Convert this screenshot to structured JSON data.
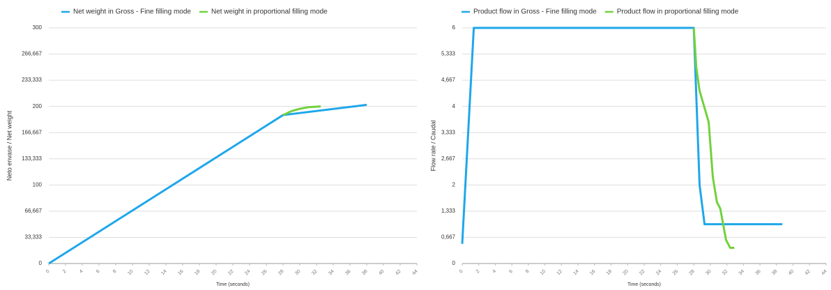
{
  "chart_data": [
    {
      "type": "line",
      "xlabel": "Time (seconds)",
      "ylabel": "Neto envase / Net weight",
      "xlim": [
        0,
        44
      ],
      "xticks": [
        0,
        2,
        4,
        6,
        8,
        10,
        12,
        14,
        16,
        18,
        20,
        22,
        24,
        26,
        28,
        30,
        32,
        34,
        36,
        38,
        40,
        42,
        44
      ],
      "ylim": [
        0,
        300
      ],
      "yticks": [
        0,
        {
          "value": 33.333,
          "label": "33,333"
        },
        {
          "value": 66.667,
          "label": "66,667"
        },
        100,
        {
          "value": 133.333,
          "label": "133,333"
        },
        {
          "value": 166.667,
          "label": "166,667"
        },
        200,
        {
          "value": 233.333,
          "label": "233,333"
        },
        {
          "value": 266.667,
          "label": "266,667"
        },
        300
      ],
      "grid": true,
      "legend": "top",
      "series": [
        {
          "name": "Net weight in Gross - Fine filling mode",
          "color": "#1ea7ea",
          "x": [
            0,
            28,
            38
          ],
          "values": [
            0,
            189,
            202
          ]
        },
        {
          "name": "Net weight in proportional filling mode",
          "color": "#72d13c",
          "x": [
            28,
            29,
            30,
            31,
            32.5
          ],
          "values": [
            189,
            194,
            197,
            199,
            200
          ]
        }
      ]
    },
    {
      "type": "line",
      "xlabel": "Time (seconds)",
      "ylabel": "Flow rate / Caudal",
      "xlim": [
        0,
        44
      ],
      "xticks": [
        0,
        2,
        4,
        6,
        8,
        10,
        12,
        14,
        16,
        18,
        20,
        22,
        24,
        26,
        28,
        30,
        32,
        34,
        36,
        38,
        40,
        42,
        44
      ],
      "ylim": [
        0,
        6
      ],
      "yticks": [
        0,
        {
          "value": 0.667,
          "label": "0,667"
        },
        {
          "value": 1.333,
          "label": "1,333"
        },
        2,
        {
          "value": 2.667,
          "label": "2,667"
        },
        {
          "value": 3.333,
          "label": "3,333"
        },
        4,
        {
          "value": 4.667,
          "label": "4,667"
        },
        {
          "value": 5.333,
          "label": "5,333"
        },
        6
      ],
      "grid": true,
      "legend": "top",
      "series": [
        {
          "name": "Product flow in Gross - Fine filling mode",
          "color": "#1ea7ea",
          "x": [
            0,
            1.4,
            28,
            28.7,
            29.3,
            38.7
          ],
          "values": [
            0.5,
            6,
            6,
            2,
            1,
            1
          ]
        },
        {
          "name": "Product flow in proportional filling mode",
          "color": "#72d13c",
          "x": [
            28,
            28.3,
            28.7,
            29.8,
            30.3,
            30.8,
            31.2,
            31.9,
            32.4,
            32.9
          ],
          "values": [
            6,
            5,
            4.4,
            3.6,
            2.2,
            1.56,
            1.4,
            0.6,
            0.4,
            0.4
          ]
        }
      ]
    }
  ]
}
